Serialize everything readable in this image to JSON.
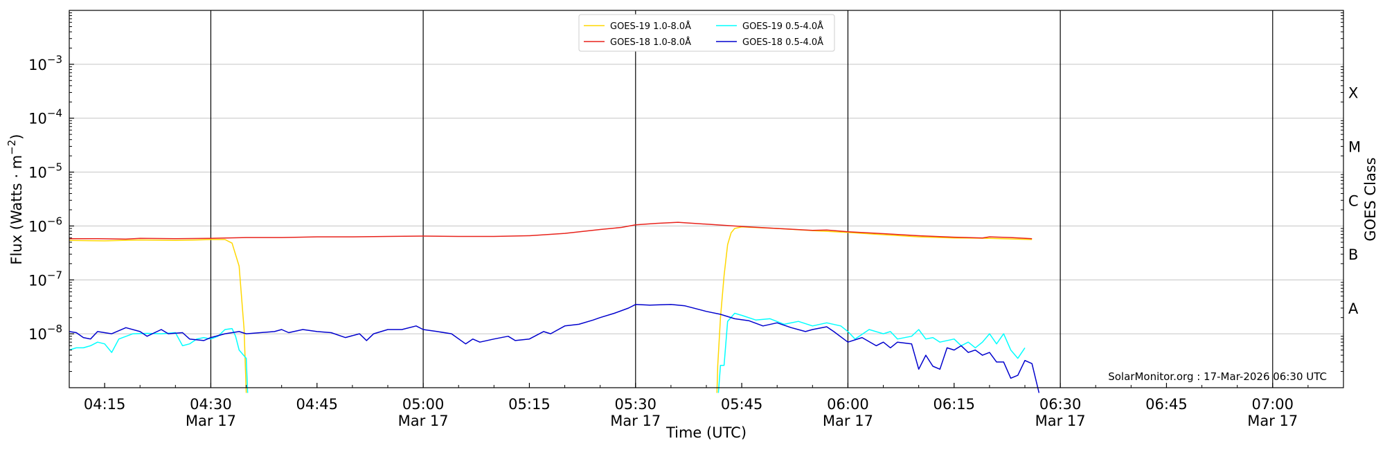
{
  "chart_data": {
    "type": "line",
    "title": "",
    "xlabel": "Time (UTC)",
    "ylabel": "Flux (Watts · m",
    "ylabel_sup": "−2",
    "ylabel_close": ")",
    "right_label": "GOES Class",
    "y_scale": "log",
    "ylim": [
      1e-09,
      0.01
    ],
    "x_range": [
      "04:10",
      "07:10"
    ],
    "grid": "horizontal at decades 1e-8 to 1e-3",
    "legend_position": "top-center",
    "y_ticks": [
      {
        "value": 1e-08,
        "base": "10",
        "exp": "−8"
      },
      {
        "value": 1e-07,
        "base": "10",
        "exp": "−7"
      },
      {
        "value": 1e-06,
        "base": "10",
        "exp": "−6"
      },
      {
        "value": 1e-05,
        "base": "10",
        "exp": "−5"
      },
      {
        "value": 0.0001,
        "base": "10",
        "exp": "−4"
      },
      {
        "value": 0.001,
        "base": "10",
        "exp": "−3"
      }
    ],
    "x_ticks": [
      {
        "time": "04:15",
        "label": "04:15",
        "sub": ""
      },
      {
        "time": "04:30",
        "label": "04:30",
        "sub": "Mar 17"
      },
      {
        "time": "04:45",
        "label": "04:45",
        "sub": ""
      },
      {
        "time": "05:00",
        "label": "05:00",
        "sub": "Mar 17"
      },
      {
        "time": "05:15",
        "label": "05:15",
        "sub": ""
      },
      {
        "time": "05:30",
        "label": "05:30",
        "sub": "Mar 17"
      },
      {
        "time": "05:45",
        "label": "05:45",
        "sub": ""
      },
      {
        "time": "06:00",
        "label": "06:00",
        "sub": "Mar 17"
      },
      {
        "time": "06:15",
        "label": "06:15",
        "sub": ""
      },
      {
        "time": "06:30",
        "label": "06:30",
        "sub": "Mar 17"
      },
      {
        "time": "06:45",
        "label": "06:45",
        "sub": ""
      },
      {
        "time": "07:00",
        "label": "07:00",
        "sub": "Mar 17"
      }
    ],
    "vertical_lines": [
      "04:30",
      "05:00",
      "05:30",
      "06:00",
      "06:30",
      "07:00"
    ],
    "goes_classes": [
      {
        "label": "A",
        "value": 3e-08
      },
      {
        "label": "B",
        "value": 3e-07
      },
      {
        "label": "C",
        "value": 3e-06
      },
      {
        "label": "M",
        "value": 3e-05
      },
      {
        "label": "X",
        "value": 0.0003
      }
    ],
    "annotation": "SolarMonitor.org : 17-Mar-2026 06:30 UTC",
    "series": [
      {
        "name": "GOES-19 1.0-8.0Å",
        "color": "#ffd700",
        "points": [
          [
            "04:10",
            5.4e-07
          ],
          [
            "04:15",
            5.3e-07
          ],
          [
            "04:20",
            5.5e-07
          ],
          [
            "04:25",
            5.4e-07
          ],
          [
            "04:28",
            5.5e-07
          ],
          [
            "04:30",
            5.6e-07
          ],
          [
            "04:32",
            5.6e-07
          ],
          [
            "04:33",
            4.8e-07
          ],
          [
            "04:34",
            1.8e-07
          ],
          [
            "04:34.7",
            1.2e-08
          ],
          [
            "04:35",
            8e-10
          ]
        ],
        "points_b": [
          [
            "05:41.5",
            8e-10
          ],
          [
            "05:41.6",
            2.5e-09
          ],
          [
            "05:42",
            2e-08
          ],
          [
            "05:42.5",
            1.2e-07
          ],
          [
            "05:43",
            4.5e-07
          ],
          [
            "05:43.5",
            7.5e-07
          ],
          [
            "05:44",
            9e-07
          ],
          [
            "05:45",
            9.6e-07
          ],
          [
            "05:50",
            9e-07
          ],
          [
            "05:55",
            8.2e-07
          ],
          [
            "06:00",
            7.6e-07
          ],
          [
            "06:05",
            6.9e-07
          ],
          [
            "06:10",
            6.3e-07
          ],
          [
            "06:15",
            6e-07
          ],
          [
            "06:20",
            5.9e-07
          ],
          [
            "06:26",
            5.6e-07
          ]
        ]
      },
      {
        "name": "GOES-18 1.0-8.0Å",
        "color": "#e8221b",
        "points": [
          [
            "04:10",
            5.8e-07
          ],
          [
            "04:14",
            5.8e-07
          ],
          [
            "04:18",
            5.7e-07
          ],
          [
            "04:20",
            5.9e-07
          ],
          [
            "04:25",
            5.8e-07
          ],
          [
            "04:30",
            5.9e-07
          ],
          [
            "04:35",
            6.1e-07
          ],
          [
            "04:40",
            6.1e-07
          ],
          [
            "04:45",
            6.3e-07
          ],
          [
            "04:50",
            6.3e-07
          ],
          [
            "04:55",
            6.4e-07
          ],
          [
            "05:00",
            6.5e-07
          ],
          [
            "05:05",
            6.4e-07
          ],
          [
            "05:10",
            6.4e-07
          ],
          [
            "05:15",
            6.6e-07
          ],
          [
            "05:20",
            7.3e-07
          ],
          [
            "05:25",
            8.6e-07
          ],
          [
            "05:28",
            9.4e-07
          ],
          [
            "05:30",
            1.05e-06
          ],
          [
            "05:33",
            1.12e-06
          ],
          [
            "05:36",
            1.17e-06
          ],
          [
            "05:40",
            1.08e-06
          ],
          [
            "05:45",
            9.8e-07
          ],
          [
            "05:50",
            9e-07
          ],
          [
            "05:55",
            8.3e-07
          ],
          [
            "05:57",
            8.4e-07
          ],
          [
            "06:00",
            7.8e-07
          ],
          [
            "06:05",
            7.2e-07
          ],
          [
            "06:10",
            6.6e-07
          ],
          [
            "06:15",
            6.2e-07
          ],
          [
            "06:19",
            6e-07
          ],
          [
            "06:20",
            6.3e-07
          ],
          [
            "06:23",
            6.1e-07
          ],
          [
            "06:26",
            5.8e-07
          ]
        ]
      },
      {
        "name": "GOES-19 0.5-4.0Å",
        "color": "#00ffff",
        "points": [
          [
            "04:10",
            5e-09
          ],
          [
            "04:11",
            5.5e-09
          ],
          [
            "04:12",
            5.5e-09
          ],
          [
            "04:13",
            6e-09
          ],
          [
            "04:14",
            7e-09
          ],
          [
            "04:15",
            6.5e-09
          ],
          [
            "04:16",
            4.5e-09
          ],
          [
            "04:17",
            8e-09
          ],
          [
            "04:19",
            1e-08
          ],
          [
            "04:21",
            1.02e-08
          ],
          [
            "04:23",
            1e-08
          ],
          [
            "04:25",
            1.05e-08
          ],
          [
            "04:26",
            6e-09
          ],
          [
            "04:27",
            6.5e-09
          ],
          [
            "04:28",
            8e-09
          ],
          [
            "04:29",
            8.5e-09
          ],
          [
            "04:30",
            8e-09
          ],
          [
            "04:31",
            9e-09
          ],
          [
            "04:32",
            1.2e-08
          ],
          [
            "04:33",
            1.25e-08
          ],
          [
            "04:33.5",
            9e-09
          ],
          [
            "04:34",
            5e-09
          ],
          [
            "04:35",
            3.5e-09
          ],
          [
            "04:35.2",
            8e-10
          ]
        ],
        "points_b": [
          [
            "05:41.7",
            8e-10
          ],
          [
            "05:42",
            2.6e-09
          ],
          [
            "05:42.5",
            2.6e-09
          ],
          [
            "05:43",
            1.7e-08
          ],
          [
            "05:44",
            2.4e-08
          ],
          [
            "05:45",
            2.2e-08
          ],
          [
            "05:47",
            1.8e-08
          ],
          [
            "05:49",
            1.9e-08
          ],
          [
            "05:51",
            1.5e-08
          ],
          [
            "05:53",
            1.7e-08
          ],
          [
            "05:55",
            1.4e-08
          ],
          [
            "05:57",
            1.6e-08
          ],
          [
            "05:59",
            1.4e-08
          ],
          [
            "06:00",
            1.1e-08
          ],
          [
            "06:01",
            8e-09
          ],
          [
            "06:03",
            1.2e-08
          ],
          [
            "06:05",
            1e-08
          ],
          [
            "06:06",
            1.1e-08
          ],
          [
            "06:07",
            8e-09
          ],
          [
            "06:09",
            9e-09
          ],
          [
            "06:10",
            1.2e-08
          ],
          [
            "06:11",
            8e-09
          ],
          [
            "06:12",
            8.5e-09
          ],
          [
            "06:13",
            7e-09
          ],
          [
            "06:15",
            8e-09
          ],
          [
            "06:16",
            6e-09
          ],
          [
            "06:17",
            7e-09
          ],
          [
            "06:18",
            5.5e-09
          ],
          [
            "06:19",
            7e-09
          ],
          [
            "06:20",
            1e-08
          ],
          [
            "06:21",
            6.5e-09
          ],
          [
            "06:22",
            1e-08
          ],
          [
            "06:23",
            5e-09
          ],
          [
            "06:24",
            3.5e-09
          ],
          [
            "06:25",
            5.5e-09
          ]
        ]
      },
      {
        "name": "GOES-18 0.5-4.0Å",
        "color": "#0000cd",
        "points": [
          [
            "04:10",
            1.1e-08
          ],
          [
            "04:11",
            1.05e-08
          ],
          [
            "04:12",
            8.5e-09
          ],
          [
            "04:13",
            8e-09
          ],
          [
            "04:14",
            1.1e-08
          ],
          [
            "04:15",
            1.05e-08
          ],
          [
            "04:16",
            1e-08
          ],
          [
            "04:18",
            1.3e-08
          ],
          [
            "04:20",
            1.1e-08
          ],
          [
            "04:21",
            9e-09
          ],
          [
            "04:23",
            1.2e-08
          ],
          [
            "04:24",
            1e-08
          ],
          [
            "04:26",
            1.05e-08
          ],
          [
            "04:27",
            8e-09
          ],
          [
            "04:29",
            7.5e-09
          ],
          [
            "04:30",
            8.5e-09
          ],
          [
            "04:32",
            1e-08
          ],
          [
            "04:34",
            1.1e-08
          ],
          [
            "04:35",
            1e-08
          ],
          [
            "04:37",
            1.05e-08
          ],
          [
            "04:39",
            1.1e-08
          ],
          [
            "04:40",
            1.2e-08
          ],
          [
            "04:41",
            1.05e-08
          ],
          [
            "04:43",
            1.2e-08
          ],
          [
            "04:45",
            1.1e-08
          ],
          [
            "04:47",
            1.05e-08
          ],
          [
            "04:49",
            8.5e-09
          ],
          [
            "04:51",
            1e-08
          ],
          [
            "04:52",
            7.5e-09
          ],
          [
            "04:53",
            1e-08
          ],
          [
            "04:55",
            1.2e-08
          ],
          [
            "04:57",
            1.2e-08
          ],
          [
            "04:59",
            1.4e-08
          ],
          [
            "05:00",
            1.2e-08
          ],
          [
            "05:02",
            1.1e-08
          ],
          [
            "05:04",
            1e-08
          ],
          [
            "05:06",
            6.5e-09
          ],
          [
            "05:07",
            8e-09
          ],
          [
            "05:08",
            7e-09
          ],
          [
            "05:10",
            8e-09
          ],
          [
            "05:12",
            9e-09
          ],
          [
            "05:13",
            7.5e-09
          ],
          [
            "05:15",
            8e-09
          ],
          [
            "05:17",
            1.1e-08
          ],
          [
            "05:18",
            1e-08
          ],
          [
            "05:20",
            1.4e-08
          ],
          [
            "05:22",
            1.5e-08
          ],
          [
            "05:24",
            1.8e-08
          ],
          [
            "05:25",
            2e-08
          ],
          [
            "05:27",
            2.4e-08
          ],
          [
            "05:29",
            3e-08
          ],
          [
            "05:30",
            3.5e-08
          ],
          [
            "05:32",
            3.4e-08
          ],
          [
            "05:35",
            3.5e-08
          ],
          [
            "05:37",
            3.3e-08
          ],
          [
            "05:40",
            2.6e-08
          ],
          [
            "05:42",
            2.3e-08
          ],
          [
            "05:44",
            1.9e-08
          ],
          [
            "05:46",
            1.75e-08
          ],
          [
            "05:48",
            1.4e-08
          ],
          [
            "05:50",
            1.6e-08
          ],
          [
            "05:52",
            1.3e-08
          ],
          [
            "05:54",
            1.1e-08
          ],
          [
            "05:55",
            1.2e-08
          ],
          [
            "05:57",
            1.35e-08
          ],
          [
            "05:58",
            1.1e-08
          ],
          [
            "06:00",
            7e-09
          ],
          [
            "06:02",
            8.5e-09
          ],
          [
            "06:04",
            6e-09
          ],
          [
            "06:05",
            7e-09
          ],
          [
            "06:06",
            5.5e-09
          ],
          [
            "06:07",
            7e-09
          ],
          [
            "06:09",
            6.5e-09
          ],
          [
            "06:10",
            2.2e-09
          ],
          [
            "06:11",
            4e-09
          ],
          [
            "06:12",
            2.5e-09
          ],
          [
            "06:13",
            2.2e-09
          ],
          [
            "06:14",
            5.5e-09
          ],
          [
            "06:15",
            5e-09
          ],
          [
            "06:16",
            6e-09
          ],
          [
            "06:17",
            4.5e-09
          ],
          [
            "06:18",
            5e-09
          ],
          [
            "06:19",
            4e-09
          ],
          [
            "06:20",
            4.5e-09
          ],
          [
            "06:21",
            3e-09
          ],
          [
            "06:22",
            3e-09
          ],
          [
            "06:23",
            1.5e-09
          ],
          [
            "06:24",
            1.7e-09
          ],
          [
            "06:25",
            3.2e-09
          ],
          [
            "06:26",
            2.8e-09
          ],
          [
            "06:27",
            8e-10
          ]
        ]
      }
    ]
  }
}
